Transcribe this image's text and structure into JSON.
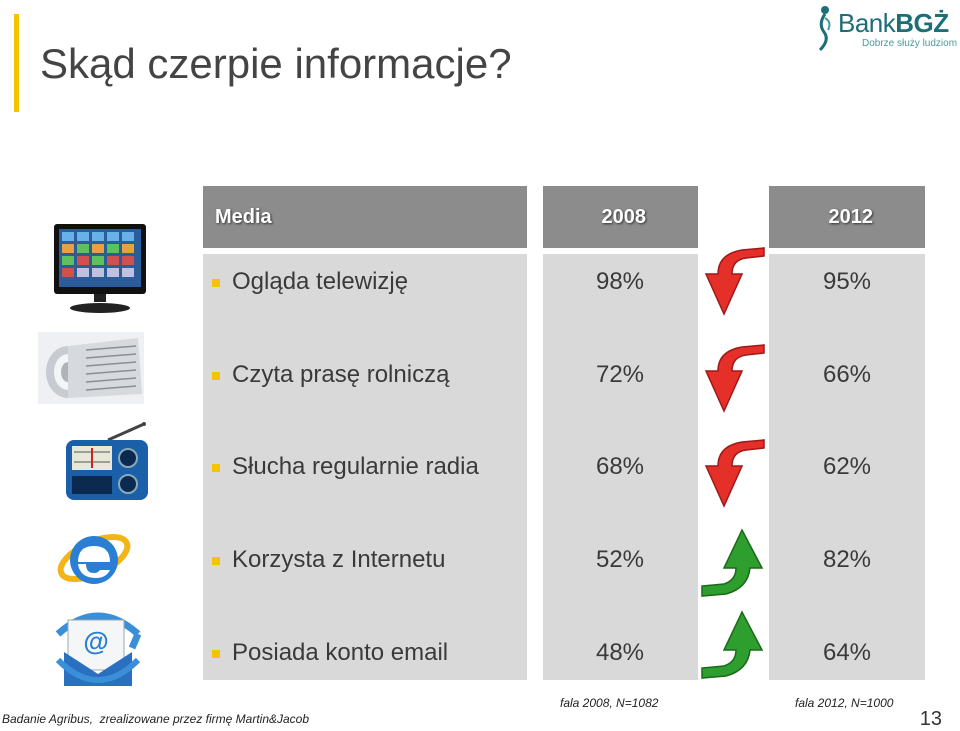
{
  "slide": {
    "title": "Skąd czerpie informacje?",
    "page_number": "13"
  },
  "logo": {
    "brand_light": "Bank",
    "brand_bold": "BGŻ",
    "tagline": "Dobrze służy ludziom"
  },
  "table": {
    "headers": {
      "media": "Media",
      "year1": "2008",
      "year2": "2012"
    },
    "rows": [
      {
        "label": "Ogląda telewizję",
        "v2008": "98%",
        "v2012": "95%",
        "trend": "down",
        "icon": "tv-icon"
      },
      {
        "label": "Czyta prasę rolniczą",
        "v2008": "72%",
        "v2012": "66%",
        "trend": "down",
        "icon": "newspaper-icon"
      },
      {
        "label": "Słucha regularnie radia",
        "v2008": "68%",
        "v2012": "62%",
        "trend": "down",
        "icon": "radio-icon"
      },
      {
        "label": "Korzysta z Internetu",
        "v2008": "52%",
        "v2012": "82%",
        "trend": "up",
        "icon": "internet-explorer-icon"
      },
      {
        "label": "Posiada konto email",
        "v2008": "48%",
        "v2012": "64%",
        "trend": "up",
        "icon": "email-icon"
      }
    ]
  },
  "footer": {
    "source": "Badanie Agribus,  zrealizowane przez firmę Martin&Jacob",
    "sample2008": "fala 2008, N=1082",
    "sample2012": "fala 2012, N=1000"
  },
  "colors": {
    "accent": "#f5c400",
    "header": "#8c8c8c",
    "cell": "#d9d9d9",
    "down": "#e5302a",
    "up": "#2e9e2e"
  }
}
